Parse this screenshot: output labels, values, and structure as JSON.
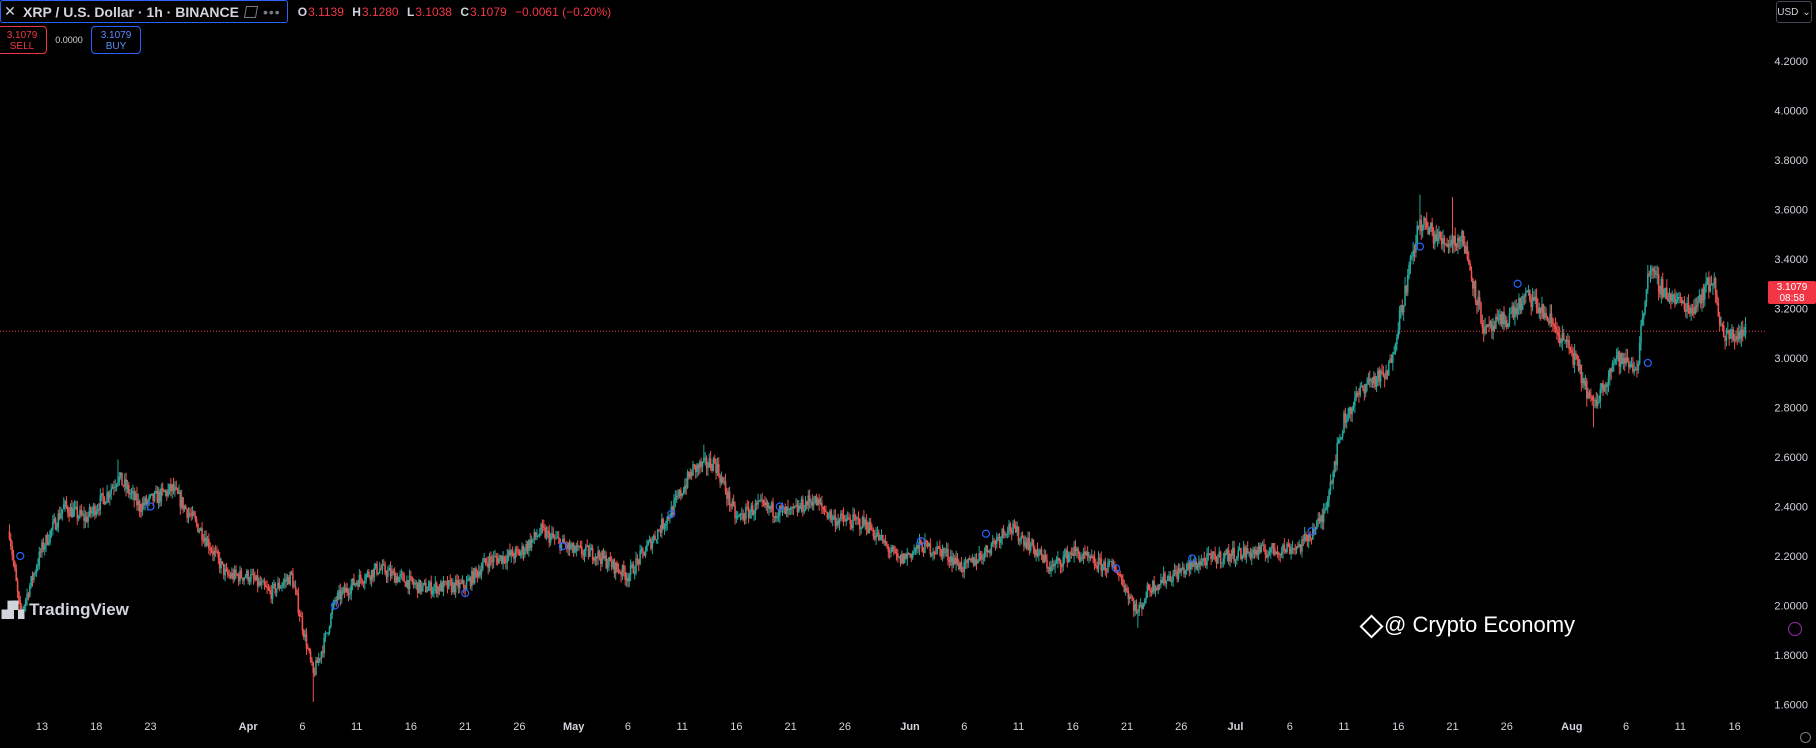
{
  "header": {
    "symbol_title": "XRP / U.S. Dollar · 1h · BINANCE",
    "ohlc": {
      "o_label": "O",
      "o": "3.1139",
      "h_label": "H",
      "h": "3.1280",
      "l_label": "L",
      "l": "3.1038",
      "c_label": "C",
      "c": "3.1079",
      "change": "−0.0061 (−0.20%)"
    }
  },
  "trade": {
    "sell_price": "3.1079",
    "sell_label": "SELL",
    "spread": "0.0000",
    "buy_price": "3.1079",
    "buy_label": "BUY"
  },
  "currency_selector": {
    "label": "USD"
  },
  "price_label": {
    "price": "3.1079",
    "countdown": "08:58"
  },
  "branding": {
    "logo_text": "TradingView",
    "watermark": "@ Crypto Economy"
  },
  "colors": {
    "up": "#26a69a",
    "down": "#ef5350",
    "background": "#000000",
    "current_price_line": "#f23645",
    "marker": "#2962ff"
  },
  "chart_data": {
    "type": "candlestick",
    "title": "XRP / U.S. Dollar · 1h · BINANCE",
    "ylim": [
      1.55,
      4.35
    ],
    "y_ticks": [
      "4.2000",
      "4.0000",
      "3.8000",
      "3.6000",
      "3.4000",
      "3.2000",
      "3.0000",
      "2.8000",
      "2.6000",
      "2.4000",
      "2.2000",
      "2.0000",
      "1.8000",
      "1.6000"
    ],
    "x_ticks": [
      "13",
      "18",
      "23",
      "Apr",
      "6",
      "11",
      "16",
      "21",
      "26",
      "May",
      "6",
      "11",
      "16",
      "21",
      "26",
      "Jun",
      "6",
      "11",
      "16",
      "21",
      "26",
      "Jul",
      "6",
      "11",
      "16",
      "21",
      "26",
      "Aug",
      "6",
      "11",
      "16"
    ],
    "current_price": 3.1079,
    "grid": false,
    "approx_close_path": [
      {
        "date": "2025-03-10",
        "close": 2.3
      },
      {
        "date": "2025-03-11",
        "close": 1.96
      },
      {
        "date": "2025-03-13",
        "close": 2.23
      },
      {
        "date": "2025-03-15",
        "close": 2.4
      },
      {
        "date": "2025-03-17",
        "close": 2.35
      },
      {
        "date": "2025-03-19",
        "close": 2.45
      },
      {
        "date": "2025-03-20",
        "close": 2.52
      },
      {
        "date": "2025-03-22",
        "close": 2.4
      },
      {
        "date": "2025-03-25",
        "close": 2.47
      },
      {
        "date": "2025-03-28",
        "close": 2.28
      },
      {
        "date": "2025-03-30",
        "close": 2.12
      },
      {
        "date": "2025-04-01",
        "close": 2.12
      },
      {
        "date": "2025-04-03",
        "close": 2.05
      },
      {
        "date": "2025-04-05",
        "close": 2.12
      },
      {
        "date": "2025-04-07",
        "close": 1.72
      },
      {
        "date": "2025-04-08",
        "close": 1.85
      },
      {
        "date": "2025-04-09",
        "close": 2.02
      },
      {
        "date": "2025-04-11",
        "close": 2.1
      },
      {
        "date": "2025-04-13",
        "close": 2.15
      },
      {
        "date": "2025-04-17",
        "close": 2.07
      },
      {
        "date": "2025-04-21",
        "close": 2.08
      },
      {
        "date": "2025-04-23",
        "close": 2.18
      },
      {
        "date": "2025-04-26",
        "close": 2.21
      },
      {
        "date": "2025-04-28",
        "close": 2.3
      },
      {
        "date": "2025-05-01",
        "close": 2.22
      },
      {
        "date": "2025-05-03",
        "close": 2.21
      },
      {
        "date": "2025-05-06",
        "close": 2.12
      },
      {
        "date": "2025-05-08",
        "close": 2.25
      },
      {
        "date": "2025-05-10",
        "close": 2.38
      },
      {
        "date": "2025-05-12",
        "close": 2.55
      },
      {
        "date": "2025-05-14",
        "close": 2.58
      },
      {
        "date": "2025-05-16",
        "close": 2.35
      },
      {
        "date": "2025-05-18",
        "close": 2.4
      },
      {
        "date": "2025-05-21",
        "close": 2.37
      },
      {
        "date": "2025-05-23",
        "close": 2.43
      },
      {
        "date": "2025-05-25",
        "close": 2.35
      },
      {
        "date": "2025-05-28",
        "close": 2.33
      },
      {
        "date": "2025-05-31",
        "close": 2.18
      },
      {
        "date": "2025-06-02",
        "close": 2.24
      },
      {
        "date": "2025-06-04",
        "close": 2.22
      },
      {
        "date": "2025-06-06",
        "close": 2.15
      },
      {
        "date": "2025-06-08",
        "close": 2.22
      },
      {
        "date": "2025-06-10",
        "close": 2.32
      },
      {
        "date": "2025-06-12",
        "close": 2.25
      },
      {
        "date": "2025-06-14",
        "close": 2.15
      },
      {
        "date": "2025-06-16",
        "close": 2.22
      },
      {
        "date": "2025-06-18",
        "close": 2.17
      },
      {
        "date": "2025-06-20",
        "close": 2.15
      },
      {
        "date": "2025-06-22",
        "close": 1.97
      },
      {
        "date": "2025-06-23",
        "close": 2.07
      },
      {
        "date": "2025-06-25",
        "close": 2.12
      },
      {
        "date": "2025-06-28",
        "close": 2.18
      },
      {
        "date": "2025-07-01",
        "close": 2.21
      },
      {
        "date": "2025-07-04",
        "close": 2.22
      },
      {
        "date": "2025-07-07",
        "close": 2.24
      },
      {
        "date": "2025-07-09",
        "close": 2.35
      },
      {
        "date": "2025-07-11",
        "close": 2.75
      },
      {
        "date": "2025-07-13",
        "close": 2.9
      },
      {
        "date": "2025-07-15",
        "close": 2.93
      },
      {
        "date": "2025-07-17",
        "close": 3.35
      },
      {
        "date": "2025-07-18",
        "close": 3.55
      },
      {
        "date": "2025-07-20",
        "close": 3.47
      },
      {
        "date": "2025-07-22",
        "close": 3.48
      },
      {
        "date": "2025-07-24",
        "close": 3.1
      },
      {
        "date": "2025-07-26",
        "close": 3.16
      },
      {
        "date": "2025-07-28",
        "close": 3.25
      },
      {
        "date": "2025-07-30",
        "close": 3.15
      },
      {
        "date": "2025-08-01",
        "close": 3.02
      },
      {
        "date": "2025-08-03",
        "close": 2.8
      },
      {
        "date": "2025-08-05",
        "close": 3.0
      },
      {
        "date": "2025-08-07",
        "close": 2.96
      },
      {
        "date": "2025-08-08",
        "close": 3.35
      },
      {
        "date": "2025-08-10",
        "close": 3.25
      },
      {
        "date": "2025-08-12",
        "close": 3.2
      },
      {
        "date": "2025-08-14",
        "close": 3.32
      },
      {
        "date": "2025-08-15",
        "close": 3.08
      },
      {
        "date": "2025-08-17",
        "close": 3.1079
      }
    ],
    "extremes": [
      {
        "date": "2025-03-20",
        "high": 2.59
      },
      {
        "date": "2025-04-07",
        "low": 1.61
      },
      {
        "date": "2025-05-13",
        "high": 2.65
      },
      {
        "date": "2025-06-22",
        "low": 1.91
      },
      {
        "date": "2025-07-18",
        "high": 3.66
      },
      {
        "date": "2025-07-21",
        "high": 3.65
      },
      {
        "date": "2025-08-03",
        "low": 2.72
      }
    ],
    "events": [
      {
        "date": "2025-03-11",
        "price": 2.2
      },
      {
        "date": "2025-03-23",
        "price": 2.4
      },
      {
        "date": "2025-04-09",
        "price": 2.0
      },
      {
        "date": "2025-04-21",
        "price": 2.05
      },
      {
        "date": "2025-04-30",
        "price": 2.24
      },
      {
        "date": "2025-05-10",
        "price": 2.37
      },
      {
        "date": "2025-05-20",
        "price": 2.4
      },
      {
        "date": "2025-06-02",
        "price": 2.26
      },
      {
        "date": "2025-06-08",
        "price": 2.29
      },
      {
        "date": "2025-06-20",
        "price": 2.15
      },
      {
        "date": "2025-06-27",
        "price": 2.19
      },
      {
        "date": "2025-07-08",
        "price": 2.3
      },
      {
        "date": "2025-07-18",
        "price": 3.45
      },
      {
        "date": "2025-07-27",
        "price": 3.3
      },
      {
        "date": "2025-08-08",
        "price": 2.98
      }
    ]
  }
}
